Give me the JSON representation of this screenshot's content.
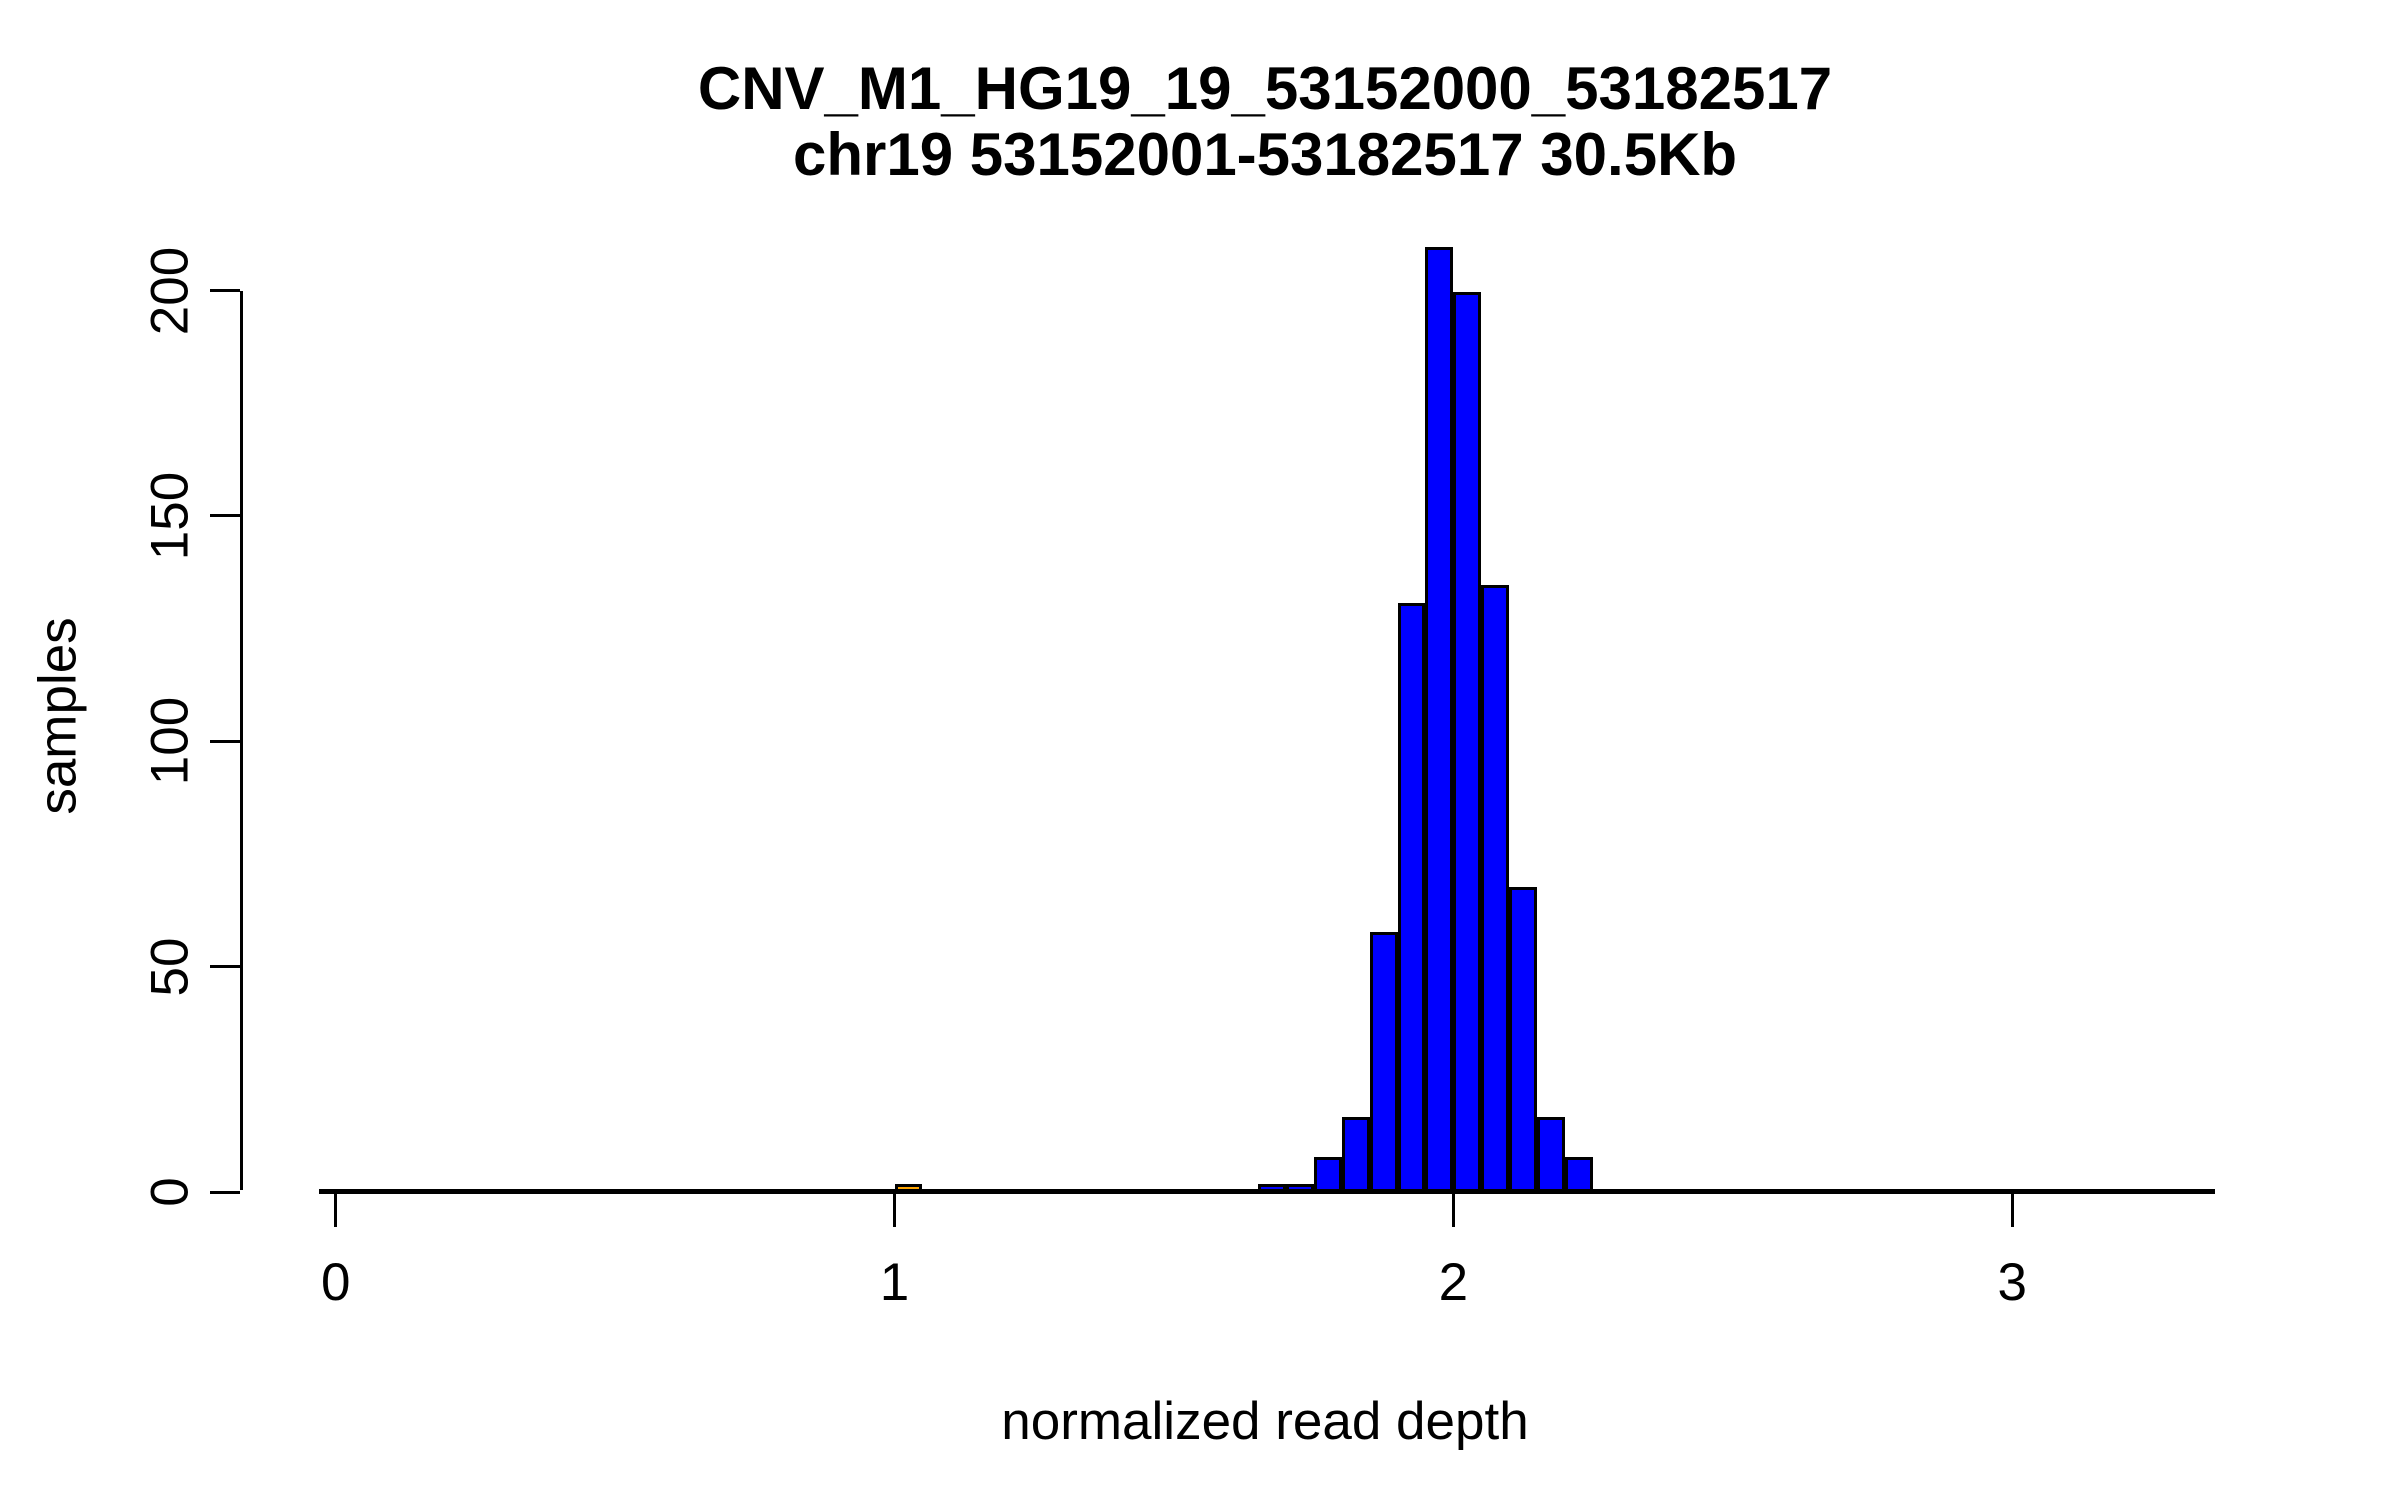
{
  "figure": {
    "title_line1": "CNV_M1_HG19_19_53152000_53182517",
    "title_line2": "chr19 53152001-53182517 30.5Kb",
    "xlabel": "normalized read depth",
    "ylabel": "samples"
  },
  "chart_data": {
    "type": "bar",
    "subtype": "histogram",
    "title": "CNV_M1_HG19_19_53152000_53182517",
    "subtitle": "chr19 53152001-53182517 30.5Kb",
    "xlabel": "normalized read depth",
    "ylabel": "samples",
    "x_ticks": [
      0,
      1,
      2,
      3
    ],
    "y_ticks": [
      0,
      50,
      100,
      150,
      200
    ],
    "xlim": [
      0,
      3.3
    ],
    "ylim": [
      0,
      210
    ],
    "grid": false,
    "legend": false,
    "bar_fill": "#0000FF",
    "highlight_fill": "#FFA500",
    "bar_border": "#000000",
    "bin_width": 0.05,
    "bins": [
      {
        "start": 1.0,
        "end": 1.05,
        "count": 1,
        "highlight": true
      },
      {
        "start": 1.65,
        "end": 1.7,
        "count": 1,
        "highlight": false
      },
      {
        "start": 1.7,
        "end": 1.75,
        "count": 1,
        "highlight": false
      },
      {
        "start": 1.75,
        "end": 1.8,
        "count": 7,
        "highlight": false
      },
      {
        "start": 1.8,
        "end": 1.85,
        "count": 16,
        "highlight": false
      },
      {
        "start": 1.85,
        "end": 1.9,
        "count": 57,
        "highlight": false
      },
      {
        "start": 1.9,
        "end": 1.95,
        "count": 130,
        "highlight": false
      },
      {
        "start": 1.95,
        "end": 2.0,
        "count": 209,
        "highlight": false
      },
      {
        "start": 2.0,
        "end": 2.05,
        "count": 199,
        "highlight": false
      },
      {
        "start": 2.05,
        "end": 2.1,
        "count": 134,
        "highlight": false
      },
      {
        "start": 2.1,
        "end": 2.15,
        "count": 67,
        "highlight": false
      },
      {
        "start": 2.15,
        "end": 2.2,
        "count": 16,
        "highlight": false
      },
      {
        "start": 2.2,
        "end": 2.25,
        "count": 7,
        "highlight": false
      }
    ]
  }
}
